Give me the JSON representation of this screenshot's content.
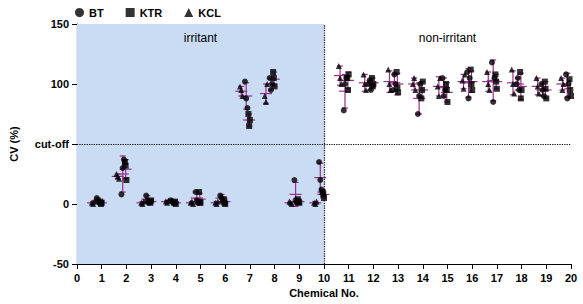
{
  "chart_data": {
    "type": "scatter",
    "x_label": "Chemical No.",
    "y_label": "CV (%)",
    "xlim": [
      0,
      20
    ],
    "xticks": [
      0,
      1,
      2,
      3,
      4,
      5,
      6,
      7,
      8,
      9,
      10,
      11,
      12,
      13,
      14,
      15,
      16,
      17,
      18,
      19,
      20
    ],
    "ylim": [
      -50,
      150
    ],
    "yticks": [
      -50,
      0,
      {
        "value": 50,
        "label": "cut-off"
      },
      100,
      150
    ],
    "grid": false,
    "legend": "top left",
    "regions": [
      {
        "label": "irritant",
        "x": [
          0,
          10
        ],
        "color": "#c9dcf4"
      },
      {
        "label": "non-irritant",
        "x": [
          10,
          20
        ]
      }
    ],
    "reference_lines": [
      {
        "axis": "y",
        "value": 50,
        "line_style": "dotted"
      },
      {
        "axis": "x",
        "value": 10,
        "line_style": "dotted"
      }
    ],
    "series": [
      {
        "name": "BT",
        "color": "#000000",
        "marker": "circle",
        "x": [
          0.8,
          0.85,
          0.9,
          1.8,
          1.85,
          1.9,
          2.8,
          2.85,
          2.9,
          3.8,
          3.85,
          3.9,
          4.8,
          4.85,
          4.9,
          5.8,
          5.85,
          5.9,
          6.8,
          6.85,
          6.9,
          7.8,
          7.85,
          7.9,
          8.8,
          8.85,
          8.9,
          9.8,
          9.85,
          9.9,
          10.8,
          10.85,
          10.9,
          11.8,
          11.85,
          11.9,
          12.8,
          12.85,
          12.9,
          13.8,
          13.85,
          13.9,
          14.8,
          14.85,
          14.9,
          15.8,
          15.85,
          15.9,
          16.8,
          16.85,
          16.9,
          17.8,
          17.85,
          17.9,
          18.8,
          18.85,
          18.9,
          19.8,
          19.85,
          19.9
        ],
        "values": [
          5,
          3,
          1,
          8,
          30,
          37,
          7,
          3,
          1,
          3,
          2,
          1,
          10,
          3,
          1,
          7,
          5,
          2,
          102,
          88,
          80,
          105,
          95,
          100,
          20,
          3,
          1,
          35,
          20,
          12,
          78,
          100,
          105,
          100,
          103,
          95,
          95,
          108,
          100,
          75,
          90,
          100,
          105,
          90,
          95,
          110,
          88,
          105,
          118,
          85,
          105,
          100,
          105,
          95,
          100,
          95,
          90,
          108,
          88,
          100
        ],
        "mean_x": [
          0.85,
          1.85,
          2.85,
          3.85,
          4.85,
          5.85,
          6.85,
          7.85,
          8.85,
          9.85,
          10.85,
          11.85,
          12.85,
          13.85,
          14.85,
          15.85,
          16.85,
          17.85,
          18.85,
          19.85
        ],
        "mean": [
          3,
          25,
          4,
          2,
          5,
          5,
          90,
          100,
          8,
          22,
          94,
          99,
          101,
          88,
          97,
          101,
          103,
          100,
          95,
          99
        ],
        "sd": [
          2,
          15,
          3,
          1,
          5,
          3,
          11,
          5,
          10,
          12,
          14,
          4,
          7,
          13,
          8,
          12,
          17,
          5,
          5,
          10
        ]
      },
      {
        "name": "KTR",
        "color": "#000000",
        "marker": "square",
        "x": [
          0.94,
          0.97,
          1,
          1.94,
          1.97,
          2,
          2.94,
          2.97,
          3,
          3.94,
          3.97,
          4,
          4.94,
          4.97,
          5,
          5.94,
          5.97,
          6,
          6.94,
          6.97,
          7,
          7.94,
          7.97,
          8,
          8.94,
          8.97,
          9,
          9.94,
          9.97,
          10,
          10.94,
          10.97,
          11,
          11.94,
          11.97,
          12,
          12.94,
          12.97,
          13,
          13.94,
          13.97,
          14,
          14.94,
          14.97,
          15,
          15.94,
          15.97,
          16,
          16.94,
          16.97,
          17,
          17.94,
          17.97,
          18,
          18.94,
          18.97,
          19,
          19.94,
          19.97,
          20
        ],
        "values": [
          2,
          0,
          1,
          35,
          32,
          20,
          2,
          1,
          3,
          1,
          2,
          0,
          10,
          2,
          1,
          4,
          1,
          0,
          75,
          65,
          70,
          110,
          105,
          98,
          4,
          2,
          1,
          10,
          8,
          5,
          105,
          95,
          108,
          105,
          98,
          100,
          110,
          97,
          93,
          88,
          95,
          102,
          100,
          95,
          85,
          112,
          100,
          95,
          108,
          102,
          96,
          110,
          88,
          95,
          102,
          96,
          88,
          104,
          95,
          90
        ],
        "mean_x": [
          0.97,
          1.97,
          2.97,
          3.97,
          4.97,
          5.97,
          6.97,
          7.97,
          8.97,
          9.97,
          10.97,
          11.97,
          12.97,
          13.97,
          14.97,
          15.97,
          16.97,
          17.97,
          18.97,
          19.97
        ],
        "mean": [
          1,
          29,
          2,
          1,
          4,
          2,
          70,
          104,
          2,
          8,
          103,
          101,
          100,
          95,
          93,
          102,
          102,
          98,
          95,
          96
        ],
        "sd": [
          1,
          8,
          1,
          1,
          5,
          2,
          5,
          6,
          2,
          3,
          7,
          4,
          9,
          7,
          8,
          9,
          6,
          11,
          7,
          7
        ]
      },
      {
        "name": "KCL",
        "color": "#000000",
        "marker": "triangle",
        "x": [
          0.6,
          0.65,
          0.7,
          1.6,
          1.65,
          1.7,
          2.6,
          2.65,
          2.7,
          3.6,
          3.65,
          3.7,
          4.6,
          4.65,
          4.7,
          5.6,
          5.65,
          5.7,
          6.6,
          6.65,
          6.7,
          7.6,
          7.65,
          7.7,
          8.6,
          8.65,
          8.7,
          9.6,
          9.65,
          9.7,
          10.6,
          10.65,
          10.7,
          11.6,
          11.65,
          11.7,
          12.6,
          12.65,
          12.7,
          13.6,
          13.65,
          13.7,
          14.6,
          14.65,
          14.7,
          15.6,
          15.65,
          15.7,
          16.6,
          16.65,
          16.7,
          17.6,
          17.65,
          17.7,
          18.6,
          18.65,
          18.7,
          19.6,
          19.65,
          19.7
        ],
        "values": [
          1,
          0,
          2,
          25,
          23,
          21,
          1,
          0,
          2,
          2,
          1,
          3,
          1,
          2,
          0,
          1,
          0,
          2,
          98,
          95,
          90,
          90,
          85,
          100,
          2,
          1,
          0,
          1,
          0,
          2,
          115,
          105,
          100,
          108,
          100,
          95,
          112,
          100,
          95,
          100,
          105,
          95,
          98,
          90,
          105,
          103,
          96,
          108,
          110,
          100,
          95,
          112,
          100,
          92,
          105,
          98,
          92,
          105,
          95,
          100
        ],
        "mean_x": [
          0.65,
          1.65,
          2.65,
          3.65,
          4.65,
          5.65,
          6.65,
          7.65,
          8.65,
          9.65,
          10.65,
          11.65,
          12.65,
          13.65,
          14.65,
          15.65,
          16.65,
          17.65,
          18.65,
          19.65
        ],
        "mean": [
          1,
          23,
          1,
          2,
          1,
          1,
          94,
          92,
          1,
          1,
          107,
          101,
          102,
          100,
          98,
          102,
          102,
          101,
          98,
          100
        ],
        "sd": [
          1,
          2,
          1,
          1,
          1,
          1,
          4,
          8,
          1,
          1,
          8,
          7,
          9,
          5,
          8,
          6,
          8,
          10,
          7,
          5
        ]
      }
    ]
  }
}
